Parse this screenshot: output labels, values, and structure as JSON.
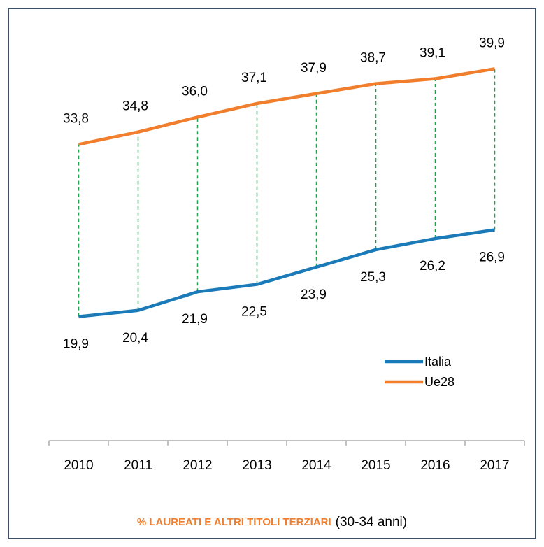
{
  "chart_data": {
    "type": "line",
    "title": "% LAUREATI E ALTRI TITOLI TERZIARI",
    "subtitle": "(30-34 anni)",
    "categories": [
      "2010",
      "2011",
      "2012",
      "2013",
      "2014",
      "2015",
      "2016",
      "2017"
    ],
    "series": [
      {
        "name": "Italia",
        "color": "#1b7ab8",
        "values": [
          19.9,
          20.4,
          21.9,
          22.5,
          23.9,
          25.3,
          26.2,
          26.9
        ],
        "value_labels": [
          "19,9",
          "20,4",
          "21,9",
          "22,5",
          "23,9",
          "25,3",
          "26,2",
          "26,9"
        ]
      },
      {
        "name": "Ue28",
        "color": "#f07e2c",
        "values": [
          33.8,
          34.8,
          36.0,
          37.1,
          37.9,
          38.7,
          39.1,
          39.9
        ],
        "value_labels": [
          "33,8",
          "34,8",
          "36,0",
          "37,1",
          "37,9",
          "38,7",
          "39,1",
          "39,9"
        ]
      }
    ],
    "ylim": [
      10,
      45
    ],
    "drop_lines": true,
    "drop_line_color": "#22a04b",
    "legend": "right"
  }
}
